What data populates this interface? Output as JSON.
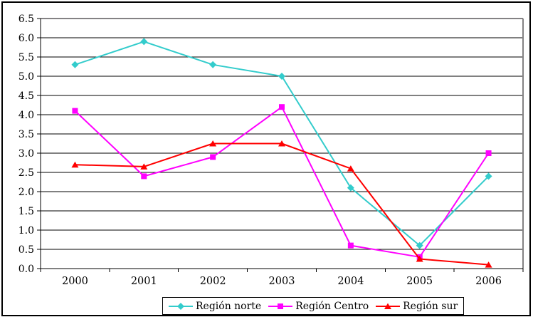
{
  "chart_data": {
    "type": "line",
    "title": "",
    "xlabel": "",
    "ylabel": "",
    "categories": [
      "2000",
      "2001",
      "2002",
      "2003",
      "2004",
      "2005",
      "2006"
    ],
    "series": [
      {
        "name": "Región norte",
        "marker": "diamond",
        "color": "#33CCCC",
        "values": [
          5.3,
          5.9,
          5.3,
          5.0,
          2.1,
          0.6,
          2.4
        ]
      },
      {
        "name": "Región Centro",
        "marker": "square",
        "color": "#FF00FF",
        "values": [
          4.1,
          2.4,
          2.9,
          4.2,
          0.6,
          0.3,
          3.0
        ]
      },
      {
        "name": "Región sur",
        "marker": "triangle",
        "color": "#FF0000",
        "values": [
          2.7,
          2.65,
          3.25,
          3.25,
          2.6,
          0.25,
          0.1
        ]
      }
    ],
    "ylim": [
      0,
      6.5
    ],
    "ytick_step": 0.5,
    "ytick_labels": [
      "0.0",
      "0.5",
      "1.0",
      "1.5",
      "2.0",
      "2.5",
      "3.0",
      "3.5",
      "4.0",
      "4.5",
      "5.0",
      "5.5",
      "6.0",
      "6.5"
    ],
    "grid": "horizontal",
    "legend_position": "bottom",
    "colors": {
      "axis": "#000000",
      "gridline": "#000000",
      "plot_border": "#848284",
      "background": "#FFFFFF",
      "text": "#000000"
    }
  }
}
